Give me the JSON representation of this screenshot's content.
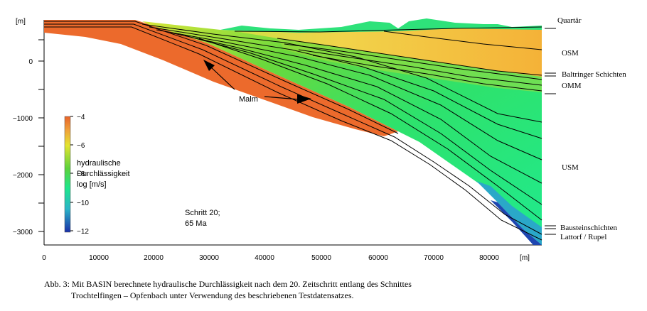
{
  "figure": {
    "y_unit": "[m]",
    "x_unit": "[m]",
    "y_ticks": [
      "0",
      "−1000",
      "−2000",
      "−3000"
    ],
    "x_ticks": [
      "0",
      "10000",
      "20000",
      "30000",
      "40000",
      "50000",
      "60000",
      "70000",
      "80000"
    ],
    "formations": [
      "Quartär",
      "OSM",
      "Baltringer Schichten",
      "OMM",
      "USM",
      "Bausteinschichten",
      "Lattorf / Rupel"
    ],
    "malm_label": "Malm",
    "colorbar": {
      "ticks": [
        "−4",
        "−6",
        "−8",
        "−10",
        "−12"
      ],
      "title_lines": [
        "hydraulische",
        "Durchlässigkeit",
        "log [m/s]"
      ],
      "colors": [
        "#e8642a",
        "#f0a23a",
        "#e4e430",
        "#5cd23c",
        "#1ee68c",
        "#2ab4c8",
        "#1a2fa8"
      ]
    },
    "step_lines": [
      "Schritt 20;",
      "65 Ma"
    ]
  },
  "caption": {
    "line1": "Abb. 3: Mit BASIN berechnete hydraulische Durchlässigkeit nach dem 20. Zeitschritt entlang des Schnittes",
    "line2": "Trochtelfingen – Opfenbach unter Verwendung des beschriebenen Testdatensatzes."
  }
}
